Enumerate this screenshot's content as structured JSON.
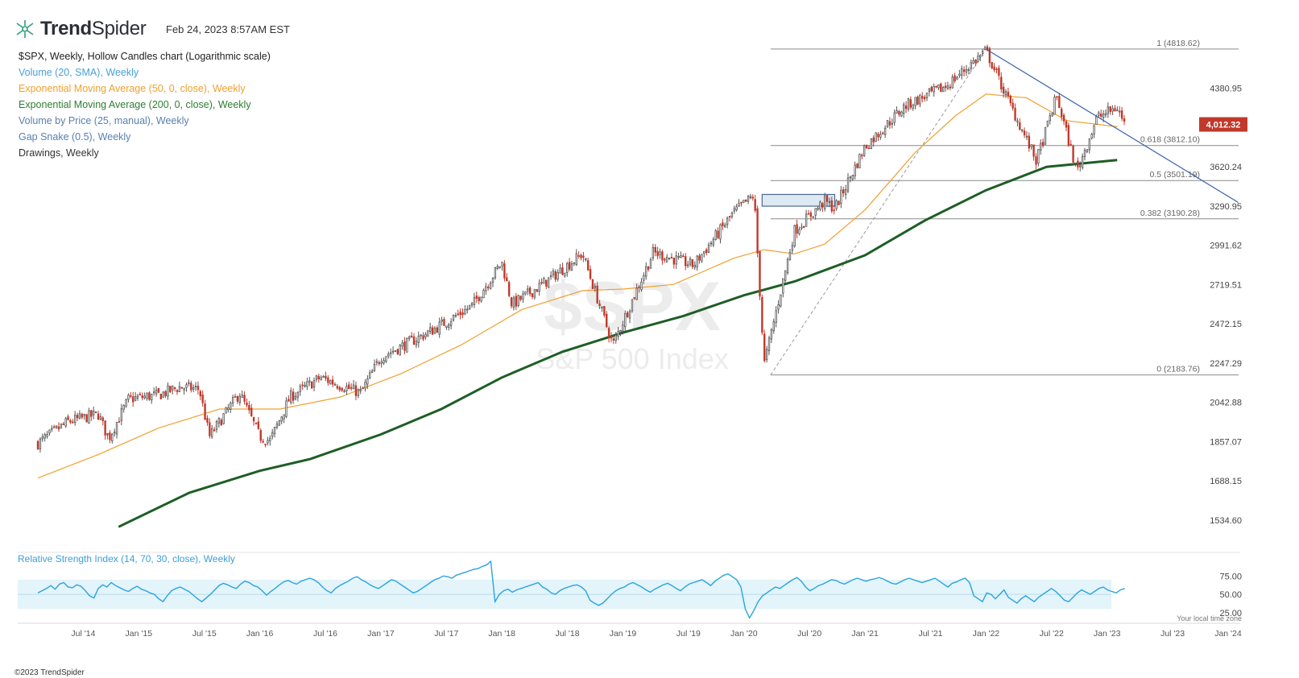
{
  "header": {
    "brand_bold": "Trend",
    "brand_light": "Spider",
    "timestamp": "Feb 24, 2023 8:57AM EST"
  },
  "indicators": [
    {
      "label": "$SPX, Weekly, Hollow Candles chart (Logarithmic scale)",
      "color": "#222222"
    },
    {
      "label": "Volume (20, SMA), Weekly",
      "color": "#4a9fd8"
    },
    {
      "label": "Exponential Moving Average (50, 0, close), Weekly",
      "color": "#f0a030"
    },
    {
      "label": "Exponential Moving Average (200, 0, close), Weekly",
      "color": "#2e7d32"
    },
    {
      "label": "Volume by Price (25, manual), Weekly",
      "color": "#5a7fb0"
    },
    {
      "label": "Gap Snake (0.5), Weekly",
      "color": "#5a7fb0"
    },
    {
      "label": "Drawings, Weekly",
      "color": "#333333"
    }
  ],
  "watermark": {
    "symbol": "$SPX",
    "name": "S&P 500 Index"
  },
  "footer": {
    "copyright": "©2023 TrendSpider",
    "timezone_note": "Your local time zone"
  },
  "colors": {
    "up": "#555555",
    "down": "#c0392b",
    "ema50": "#f0a030",
    "ema200": "#1e5e25",
    "trendline": "#3a5ea8",
    "rsi": "#2aa3e0",
    "rsi_band": "#e3f4fa",
    "last_price_bg": "#c0392b"
  },
  "chart_data": {
    "type": "line",
    "title": "$SPX, Weekly, Hollow Candles chart (Logarithmic scale)",
    "price_scale": "log",
    "ylim": [
      1450,
      5000
    ],
    "y_ticks": [
      "4380.95",
      "3620.24",
      "3290.95",
      "2991.62",
      "2719.51",
      "2472.15",
      "2247.29",
      "2042.88",
      "1857.07",
      "1688.15",
      "1534.60"
    ],
    "x_ticks": [
      "Jul '14",
      "Jan '15",
      "Jul '15",
      "Jan '16",
      "Jul '16",
      "Jan '17",
      "Jul '17",
      "Jan '18",
      "Jul '18",
      "Jan '19",
      "Jul '19",
      "Jan '20",
      "Jul '20",
      "Jan '21",
      "Jul '21",
      "Jan '22",
      "Jul '22",
      "Jan '23",
      "Jul '23",
      "Jan '24"
    ],
    "last_price": "4,012.32",
    "series": [
      {
        "name": "$SPX",
        "points": [
          [
            "2014-03",
            1850
          ],
          [
            "2014-06",
            1950
          ],
          [
            "2014-09",
            1985
          ],
          [
            "2014-10",
            1870
          ],
          [
            "2014-12",
            2060
          ],
          [
            "2015-03",
            2080
          ],
          [
            "2015-05",
            2120
          ],
          [
            "2015-07",
            2110
          ],
          [
            "2015-08",
            1880
          ],
          [
            "2015-11",
            2090
          ],
          [
            "2016-01",
            1880
          ],
          [
            "2016-02",
            1860
          ],
          [
            "2016-04",
            2070
          ],
          [
            "2016-07",
            2170
          ],
          [
            "2016-11",
            2090
          ],
          [
            "2017-01",
            2280
          ],
          [
            "2017-06",
            2430
          ],
          [
            "2017-10",
            2580
          ],
          [
            "2018-01",
            2870
          ],
          [
            "2018-02",
            2590
          ],
          [
            "2018-05",
            2720
          ],
          [
            "2018-09",
            2930
          ],
          [
            "2018-12",
            2350
          ],
          [
            "2019-04",
            2940
          ],
          [
            "2019-08",
            2850
          ],
          [
            "2019-12",
            3240
          ],
          [
            "2020-02",
            3380
          ],
          [
            "2020-03",
            2240
          ],
          [
            "2020-06",
            3100
          ],
          [
            "2020-09",
            3330
          ],
          [
            "2020-10",
            3270
          ],
          [
            "2021-01",
            3800
          ],
          [
            "2021-05",
            4200
          ],
          [
            "2021-09",
            4400
          ],
          [
            "2022-01",
            4800
          ],
          [
            "2022-03",
            4300
          ],
          [
            "2022-06",
            3670
          ],
          [
            "2022-08",
            4300
          ],
          [
            "2022-10",
            3580
          ],
          [
            "2022-12",
            4080
          ],
          [
            "2023-02",
            4180
          ],
          [
            "2023-02-24",
            4012
          ]
        ]
      },
      {
        "name": "Exponential Moving Average (50, 0, close), Weekly",
        "points": [
          [
            "2014-03",
            1700
          ],
          [
            "2014-09",
            1800
          ],
          [
            "2015-03",
            1920
          ],
          [
            "2015-09",
            2010
          ],
          [
            "2016-03",
            2010
          ],
          [
            "2016-09",
            2070
          ],
          [
            "2017-03",
            2190
          ],
          [
            "2017-09",
            2350
          ],
          [
            "2018-03",
            2560
          ],
          [
            "2018-09",
            2680
          ],
          [
            "2019-01",
            2690
          ],
          [
            "2019-06",
            2720
          ],
          [
            "2019-12",
            2900
          ],
          [
            "2020-03",
            2960
          ],
          [
            "2020-06",
            2930
          ],
          [
            "2020-09",
            3000
          ],
          [
            "2021-01",
            3260
          ],
          [
            "2021-06",
            3750
          ],
          [
            "2021-10",
            4100
          ],
          [
            "2022-01",
            4320
          ],
          [
            "2022-05",
            4280
          ],
          [
            "2022-09",
            4050
          ],
          [
            "2023-02",
            3990
          ]
        ]
      },
      {
        "name": "Exponential Moving Average (200, 0, close), Weekly",
        "points": [
          [
            "2014-11",
            1510
          ],
          [
            "2015-06",
            1640
          ],
          [
            "2016-01",
            1730
          ],
          [
            "2016-06",
            1780
          ],
          [
            "2017-01",
            1890
          ],
          [
            "2017-07",
            2010
          ],
          [
            "2018-01",
            2170
          ],
          [
            "2018-07",
            2310
          ],
          [
            "2019-01",
            2420
          ],
          [
            "2019-07",
            2520
          ],
          [
            "2020-01",
            2650
          ],
          [
            "2020-06",
            2740
          ],
          [
            "2021-01",
            2920
          ],
          [
            "2021-07",
            3180
          ],
          [
            "2022-01",
            3420
          ],
          [
            "2022-07",
            3620
          ],
          [
            "2023-02",
            3680
          ]
        ]
      }
    ],
    "drawings": {
      "fibonacci": [
        {
          "label": "1 (4818.62)",
          "value": 4818.62
        },
        {
          "label": "0.618 (3812.10)",
          "value": 3812.1
        },
        {
          "label": "0.5 (3501.19)",
          "value": 3501.19
        },
        {
          "label": "0.382 (3190.28)",
          "value": 3190.28
        },
        {
          "label": "0 (2183.76)",
          "value": 2183.76
        }
      ],
      "trendline": [
        [
          "2022-01",
          4818
        ],
        [
          "2024-02",
          3320
        ]
      ]
    },
    "rsi": {
      "title": "Relative Strength Index (14, 70, 30, close), Weekly",
      "ylim": [
        15,
        105
      ],
      "y_ticks": [
        "75.00",
        "50.00",
        "25.00"
      ],
      "band": [
        30,
        70
      ],
      "values": [
        52,
        55,
        58,
        62,
        57,
        64,
        66,
        60,
        59,
        63,
        61,
        55,
        48,
        45,
        58,
        63,
        60,
        66,
        62,
        59,
        56,
        54,
        58,
        61,
        57,
        55,
        52,
        50,
        44,
        40,
        48,
        55,
        58,
        60,
        57,
        54,
        49,
        44,
        40,
        45,
        50,
        56,
        62,
        65,
        63,
        60,
        58,
        64,
        68,
        66,
        62,
        60,
        55,
        49,
        54,
        58,
        63,
        67,
        69,
        66,
        64,
        68,
        70,
        72,
        70,
        66,
        60,
        55,
        52,
        58,
        62,
        65,
        68,
        72,
        74,
        70,
        67,
        63,
        60,
        58,
        62,
        66,
        70,
        68,
        64,
        60,
        56,
        52,
        54,
        58,
        62,
        66,
        70,
        72,
        75,
        74,
        72,
        76,
        78,
        80,
        82,
        84,
        85,
        88,
        90,
        95,
        40,
        50,
        55,
        57,
        53,
        56,
        58,
        60,
        62,
        64,
        66,
        60,
        57,
        52,
        50,
        55,
        58,
        60,
        62,
        63,
        60,
        55,
        42,
        38,
        35,
        38,
        44,
        50,
        55,
        58,
        60,
        64,
        66,
        63,
        60,
        56,
        53,
        57,
        60,
        63,
        65,
        62,
        58,
        55,
        60,
        64,
        66,
        68,
        70,
        66,
        62,
        68,
        72,
        76,
        78,
        74,
        70,
        60,
        30,
        18,
        28,
        40,
        48,
        52,
        56,
        60,
        58,
        62,
        66,
        70,
        73,
        68,
        60,
        55,
        58,
        62,
        64,
        67,
        70,
        69,
        66,
        64,
        67,
        70,
        72,
        70,
        68,
        70,
        71,
        73,
        71,
        68,
        65,
        64,
        67,
        70,
        72,
        70,
        68,
        66,
        68,
        70,
        72,
        68,
        64,
        60,
        65,
        67,
        70,
        72,
        66,
        48,
        44,
        40,
        52,
        50,
        44,
        50,
        56,
        46,
        42,
        38,
        44,
        48,
        44,
        40,
        46,
        50,
        54,
        58,
        54,
        48,
        42,
        40,
        46,
        52,
        56,
        53,
        50,
        54,
        58,
        60,
        56,
        54,
        52,
        56,
        58
      ]
    }
  }
}
